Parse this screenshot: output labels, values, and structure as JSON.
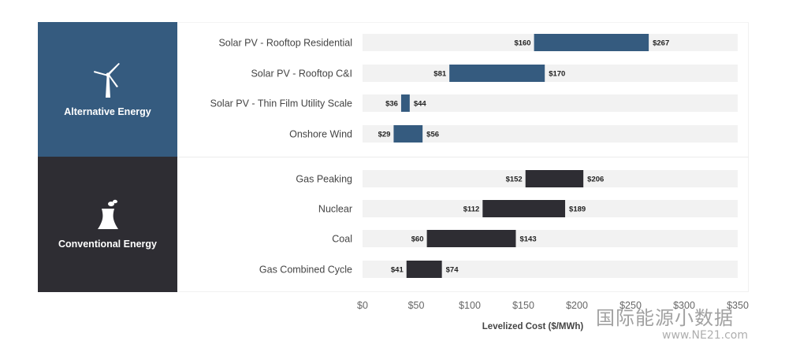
{
  "groups": [
    {
      "label": "Alternative Energy",
      "icon": "wind-turbine-icon",
      "color": "#355b7f"
    },
    {
      "label": "Conventional Energy",
      "icon": "power-plant-icon",
      "color": "#2e2d33"
    }
  ],
  "chart_data": {
    "type": "bar",
    "orientation": "horizontal-range",
    "xlabel": "Levelized Cost ($/MWh)",
    "xlim": [
      0,
      350
    ],
    "xticks": [
      "$0",
      "$50",
      "$100",
      "$150",
      "$200",
      "$250",
      "$300",
      "$350"
    ],
    "tick_values": [
      0,
      50,
      100,
      150,
      200,
      250,
      300,
      350
    ],
    "track_color": "#f2f2f2",
    "rows": [
      {
        "label": "Solar PV - Rooftop Residential",
        "low": 160,
        "high": 267,
        "low_label": "$160",
        "high_label": "$267",
        "group": 0
      },
      {
        "label": "Solar PV - Rooftop C&I",
        "low": 81,
        "high": 170,
        "low_label": "$81",
        "high_label": "$170",
        "group": 0
      },
      {
        "label": "Solar PV - Thin Film Utility Scale",
        "low": 36,
        "high": 44,
        "low_label": "$36",
        "high_label": "$44",
        "group": 0
      },
      {
        "label": "Onshore Wind",
        "low": 29,
        "high": 56,
        "low_label": "$29",
        "high_label": "$56",
        "group": 0
      },
      {
        "label": "Gas Peaking",
        "low": 152,
        "high": 206,
        "low_label": "$152",
        "high_label": "$206",
        "group": 1
      },
      {
        "label": "Nuclear",
        "low": 112,
        "high": 189,
        "low_label": "$112",
        "high_label": "$189",
        "group": 1
      },
      {
        "label": "Coal",
        "low": 60,
        "high": 143,
        "low_label": "$60",
        "high_label": "$143",
        "group": 1
      },
      {
        "label": "Gas Combined Cycle",
        "low": 41,
        "high": 74,
        "low_label": "$41",
        "high_label": "$74",
        "group": 1
      }
    ]
  },
  "watermark": {
    "line1": "国际能源小数据",
    "line2": "www.NE21.com"
  }
}
